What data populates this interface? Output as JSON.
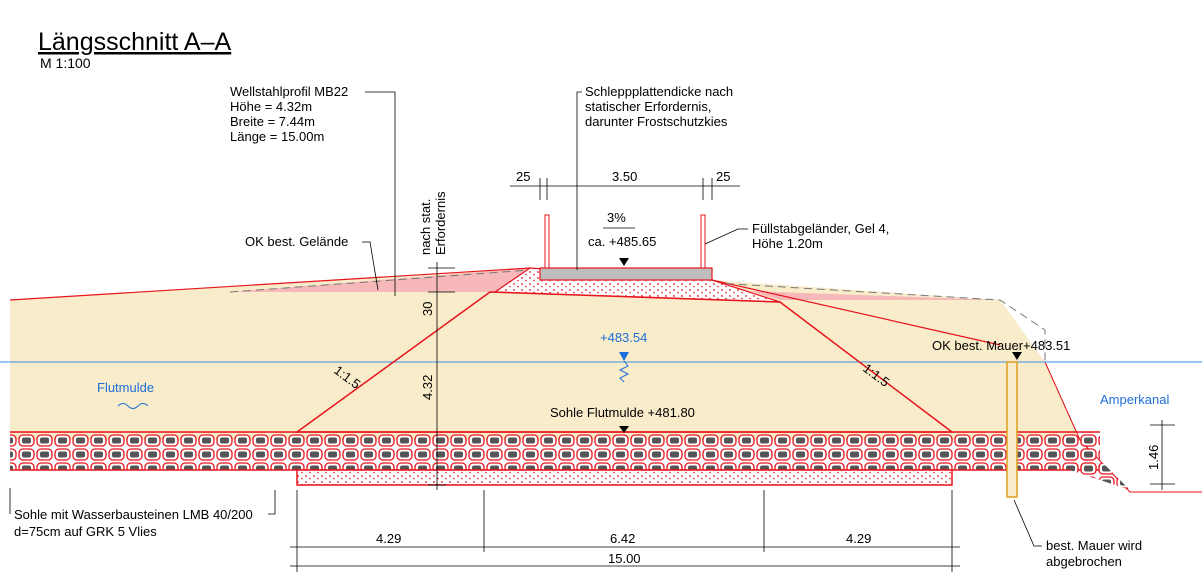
{
  "header": {
    "title": "Längsschnitt A–A",
    "scale": "M 1:100"
  },
  "callouts": {
    "profile": [
      "Wellstahlprofil MB22",
      "Höhe  = 4.32m",
      "Breite = 7.44m",
      "Länge = 15.00m"
    ],
    "slab": [
      "Schleppplattendicke nach",
      "statischer Erfordernis,",
      "darunter Frostschutzkies"
    ],
    "railing": [
      "Füllstabgeländer, Gel 4,",
      "Höhe 1.20m"
    ],
    "ground": "OK best. Gelände",
    "stat": [
      "nach stat.",
      "Erfordernis"
    ],
    "sole": [
      "Sohle mit Wasserbausteinen LMB 40/200",
      "d=75cm auf GRK 5 Vlies"
    ],
    "wall_removed": [
      "best. Mauer wird",
      "abgebrochen"
    ]
  },
  "levels": {
    "road": "ca. +485.65",
    "water": "+483.54",
    "wall": "OK best. Mauer+483.51",
    "sole": "Sohle Flutmulde +481.80"
  },
  "labels": {
    "flutmulde": "Flutmulde",
    "amperkanal": "Amperkanal",
    "slope_left": "1:1.5",
    "slope_right": "1:1.5",
    "gradient": "3%"
  },
  "dimensions": {
    "top": [
      "25",
      "3.50",
      "25"
    ],
    "vertical": [
      "30",
      "4.32"
    ],
    "canal": "1.46",
    "bottom": [
      "4.29",
      "6.42",
      "4.29"
    ],
    "total": "15.00"
  }
}
